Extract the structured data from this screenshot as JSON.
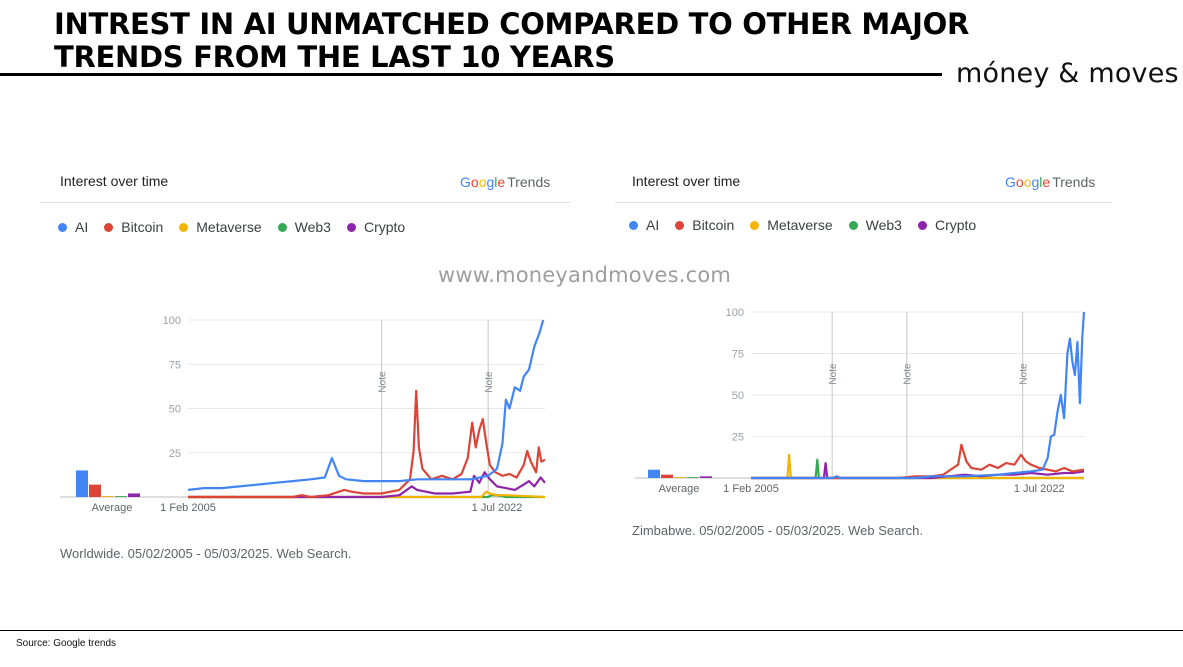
{
  "page": {
    "title": "INTREST IN AI UNMATCHED COMPARED TO OTHER MAJOR TRENDS FROM THE LAST 10 YEARS",
    "brand": "móney & moves",
    "watermark": "www.moneyandmoves.com",
    "source": "Source: Google trends"
  },
  "colors": {
    "AI": "#4285F4",
    "Bitcoin": "#DB4437",
    "Metaverse": "#F4B400",
    "Web3": "#34A853",
    "Crypto": "#8E24AA"
  },
  "chart_data": [
    {
      "type": "line",
      "header": "Interest over time",
      "provider": "Google Trends",
      "region_caption": "Worldwide. 05/02/2005 - 05/03/2025. Web Search.",
      "ylim": [
        0,
        100
      ],
      "yticks": [
        25,
        50,
        75,
        100
      ],
      "xlim": [
        2005.1,
        2025.2
      ],
      "xtick_labels": [
        {
          "x": 2005.1,
          "label": "1 Feb 2005"
        },
        {
          "x": 2022.5,
          "label": "1 Jul 2022"
        }
      ],
      "notes": [
        {
          "x": 2016.0,
          "label": "Note"
        },
        {
          "x": 2022.0,
          "label": "Note"
        }
      ],
      "average_label": "Average",
      "averages": [
        {
          "name": "AI",
          "value": 15
        },
        {
          "name": "Bitcoin",
          "value": 7
        },
        {
          "name": "Metaverse",
          "value": 0
        },
        {
          "name": "Web3",
          "value": 0
        },
        {
          "name": "Crypto",
          "value": 2
        }
      ],
      "series": [
        {
          "name": "AI",
          "points": [
            [
              2005.1,
              4
            ],
            [
              2006,
              5
            ],
            [
              2007,
              5
            ],
            [
              2008,
              6
            ],
            [
              2009,
              7
            ],
            [
              2010,
              8
            ],
            [
              2011,
              9
            ],
            [
              2012,
              10
            ],
            [
              2012.8,
              11
            ],
            [
              2013.2,
              22
            ],
            [
              2013.6,
              12
            ],
            [
              2014,
              10
            ],
            [
              2015,
              9
            ],
            [
              2016,
              9
            ],
            [
              2017,
              9
            ],
            [
              2018,
              10
            ],
            [
              2019,
              10
            ],
            [
              2020,
              10
            ],
            [
              2021,
              10
            ],
            [
              2022,
              12
            ],
            [
              2022.5,
              16
            ],
            [
              2022.8,
              30
            ],
            [
              2023,
              55
            ],
            [
              2023.2,
              50
            ],
            [
              2023.5,
              62
            ],
            [
              2023.8,
              60
            ],
            [
              2024,
              68
            ],
            [
              2024.3,
              72
            ],
            [
              2024.6,
              85
            ],
            [
              2024.9,
              93
            ],
            [
              2025.1,
              100
            ]
          ]
        },
        {
          "name": "Bitcoin",
          "points": [
            [
              2005.1,
              0
            ],
            [
              2011,
              0
            ],
            [
              2011.5,
              1
            ],
            [
              2012,
              0
            ],
            [
              2013,
              1
            ],
            [
              2013.9,
              4
            ],
            [
              2014.3,
              3
            ],
            [
              2015,
              2
            ],
            [
              2016,
              2
            ],
            [
              2017,
              4
            ],
            [
              2017.6,
              10
            ],
            [
              2017.8,
              26
            ],
            [
              2017.95,
              60
            ],
            [
              2018.1,
              28
            ],
            [
              2018.3,
              16
            ],
            [
              2018.8,
              10
            ],
            [
              2019.4,
              12
            ],
            [
              2020,
              10
            ],
            [
              2020.5,
              13
            ],
            [
              2020.85,
              22
            ],
            [
              2021.1,
              42
            ],
            [
              2021.3,
              28
            ],
            [
              2021.5,
              38
            ],
            [
              2021.7,
              44
            ],
            [
              2021.9,
              30
            ],
            [
              2022.1,
              18
            ],
            [
              2022.4,
              14
            ],
            [
              2022.8,
              12
            ],
            [
              2023.2,
              13
            ],
            [
              2023.6,
              11
            ],
            [
              2024,
              18
            ],
            [
              2024.2,
              26
            ],
            [
              2024.4,
              20
            ],
            [
              2024.7,
              14
            ],
            [
              2024.85,
              28
            ],
            [
              2025.0,
              20
            ],
            [
              2025.2,
              21
            ]
          ]
        },
        {
          "name": "Metaverse",
          "points": [
            [
              2005.1,
              0
            ],
            [
              2021.6,
              0
            ],
            [
              2021.9,
              3
            ],
            [
              2022.1,
              2
            ],
            [
              2022.5,
              1
            ],
            [
              2023,
              1
            ],
            [
              2025.2,
              0
            ]
          ]
        },
        {
          "name": "Web3",
          "points": [
            [
              2005.1,
              0
            ],
            [
              2022,
              0
            ],
            [
              2022.2,
              1
            ],
            [
              2022.5,
              1
            ],
            [
              2023,
              0
            ],
            [
              2025.2,
              0
            ]
          ]
        },
        {
          "name": "Crypto",
          "points": [
            [
              2005.1,
              0
            ],
            [
              2016,
              0
            ],
            [
              2017,
              1
            ],
            [
              2017.7,
              6
            ],
            [
              2018,
              4
            ],
            [
              2018.5,
              3
            ],
            [
              2019,
              2
            ],
            [
              2020,
              2
            ],
            [
              2021,
              3
            ],
            [
              2021.2,
              12
            ],
            [
              2021.5,
              8
            ],
            [
              2021.8,
              14
            ],
            [
              2022.1,
              10
            ],
            [
              2022.5,
              6
            ],
            [
              2023,
              5
            ],
            [
              2023.5,
              4
            ],
            [
              2024,
              7
            ],
            [
              2024.3,
              9
            ],
            [
              2024.6,
              6
            ],
            [
              2024.95,
              11
            ],
            [
              2025.2,
              8
            ]
          ]
        }
      ]
    },
    {
      "type": "line",
      "header": "Interest over time",
      "provider": "Google Trends",
      "region_caption": "Zimbabwe. 05/02/2005 - 05/03/2025. Web Search.",
      "ylim": [
        0,
        100
      ],
      "yticks": [
        25,
        50,
        75,
        100
      ],
      "xlim": [
        2005.1,
        2025.2
      ],
      "xtick_labels": [
        {
          "x": 2005.1,
          "label": "1 Feb 2005"
        },
        {
          "x": 2022.5,
          "label": "1 Jul 2022"
        }
      ],
      "notes": [
        {
          "x": 2010.0,
          "label": "Note"
        },
        {
          "x": 2014.5,
          "label": "Note"
        },
        {
          "x": 2021.5,
          "label": "Note"
        }
      ],
      "average_label": "Average",
      "averages": [
        {
          "name": "AI",
          "value": 5
        },
        {
          "name": "Bitcoin",
          "value": 2
        },
        {
          "name": "Metaverse",
          "value": 0
        },
        {
          "name": "Web3",
          "value": 0
        },
        {
          "name": "Crypto",
          "value": 1
        }
      ],
      "series": [
        {
          "name": "AI",
          "points": [
            [
              2005.1,
              0
            ],
            [
              2010,
              0
            ],
            [
              2010.3,
              1
            ],
            [
              2010.5,
              0
            ],
            [
              2015,
              0
            ],
            [
              2016,
              1
            ],
            [
              2018,
              1
            ],
            [
              2020,
              2
            ],
            [
              2021,
              3
            ],
            [
              2022,
              4
            ],
            [
              2022.7,
              5
            ],
            [
              2023,
              12
            ],
            [
              2023.2,
              25
            ],
            [
              2023.4,
              26
            ],
            [
              2023.6,
              40
            ],
            [
              2023.8,
              50
            ],
            [
              2024,
              36
            ],
            [
              2024.2,
              75
            ],
            [
              2024.35,
              84
            ],
            [
              2024.5,
              70
            ],
            [
              2024.65,
              62
            ],
            [
              2024.8,
              82
            ],
            [
              2024.95,
              45
            ],
            [
              2025.1,
              85
            ],
            [
              2025.2,
              100
            ]
          ]
        },
        {
          "name": "Bitcoin",
          "points": [
            [
              2005.1,
              0
            ],
            [
              2014,
              0
            ],
            [
              2015,
              1
            ],
            [
              2016,
              1
            ],
            [
              2016.7,
              2
            ],
            [
              2017.3,
              6
            ],
            [
              2017.6,
              8
            ],
            [
              2017.8,
              20
            ],
            [
              2018.1,
              10
            ],
            [
              2018.4,
              6
            ],
            [
              2019,
              5
            ],
            [
              2019.5,
              8
            ],
            [
              2020,
              6
            ],
            [
              2020.5,
              9
            ],
            [
              2021,
              8
            ],
            [
              2021.4,
              14
            ],
            [
              2021.7,
              10
            ],
            [
              2022,
              8
            ],
            [
              2022.5,
              6
            ],
            [
              2023,
              5
            ],
            [
              2023.5,
              4
            ],
            [
              2024,
              6
            ],
            [
              2024.5,
              4
            ],
            [
              2025.2,
              5
            ]
          ]
        },
        {
          "name": "Metaverse",
          "points": [
            [
              2005.1,
              0
            ],
            [
              2007.3,
              0
            ],
            [
              2007.4,
              14
            ],
            [
              2007.5,
              0
            ],
            [
              2025.2,
              0
            ]
          ]
        },
        {
          "name": "Web3",
          "points": [
            [
              2005.1,
              0
            ],
            [
              2009.0,
              0
            ],
            [
              2009.1,
              11
            ],
            [
              2009.2,
              0
            ],
            [
              2025.2,
              0
            ]
          ]
        },
        {
          "name": "Crypto",
          "points": [
            [
              2005.1,
              0
            ],
            [
              2009.5,
              0
            ],
            [
              2009.6,
              9
            ],
            [
              2009.7,
              0
            ],
            [
              2016,
              0
            ],
            [
              2017,
              1
            ],
            [
              2018,
              2
            ],
            [
              2019,
              1
            ],
            [
              2020,
              2
            ],
            [
              2021,
              2
            ],
            [
              2022,
              3
            ],
            [
              2023,
              2
            ],
            [
              2024,
              3
            ],
            [
              2024.5,
              3
            ],
            [
              2025.2,
              4
            ]
          ]
        }
      ]
    }
  ]
}
